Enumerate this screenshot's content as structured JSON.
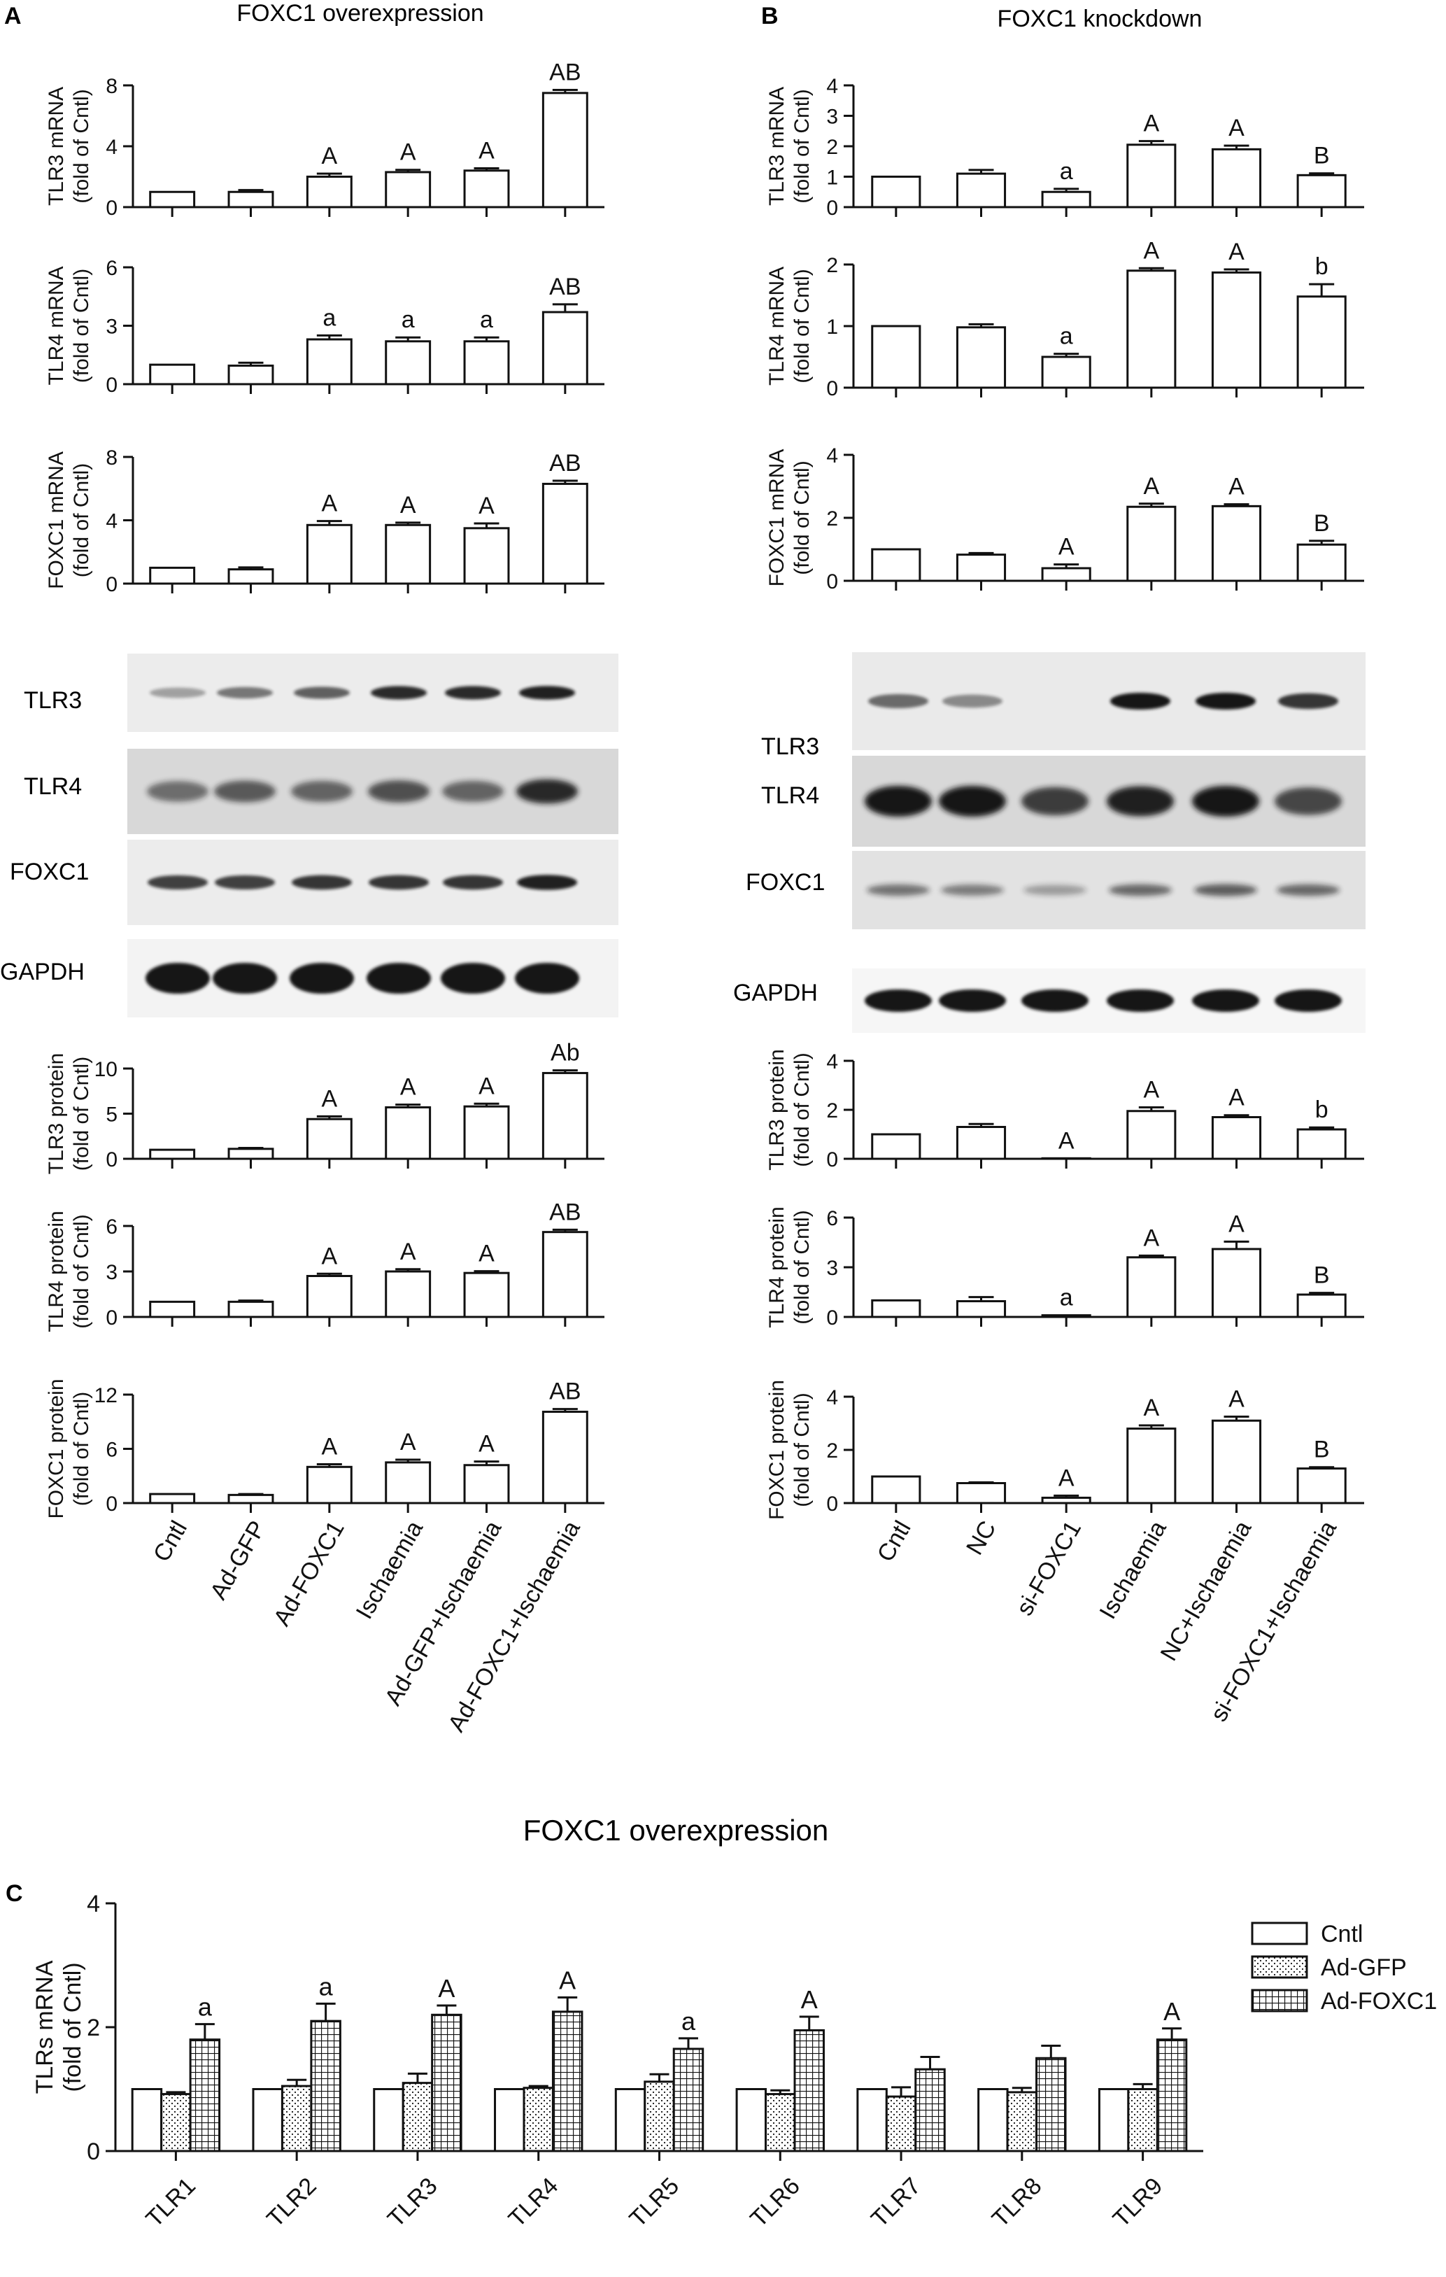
{
  "figure": {
    "panel_labels": [
      "A",
      "B",
      "C"
    ],
    "panel_titles": [
      "FOXC1 overexpression",
      "FOXC1 knockdown",
      "FOXC1 overexpression"
    ],
    "groups_A": [
      "Cntl",
      "Ad-GFP",
      "Ad-FOXC1",
      "Ischaemia",
      "Ad-GFP+Ischaemia",
      "Ad-FOXC1+Ischaemia"
    ],
    "groups_B": [
      "Cntl",
      "NC",
      "si-FOXC1",
      "Ischaemia",
      "NC+Ischaemia",
      "si-FOXC1+Ischaemia"
    ],
    "blot_labels_A": [
      "TLR3",
      "TLR4",
      "FOXC1",
      "GAPDH"
    ],
    "blot_labels_B": [
      "TLR3",
      "TLR4",
      "FOXC1",
      "GAPDH"
    ],
    "colors": {
      "ink": "#111111",
      "bar_fill": "#ffffff",
      "blot_bg": "#e6e6e6",
      "band": "#141414"
    }
  },
  "chart_data": [
    {
      "id": "A-TLR3-mRNA",
      "panel": "A",
      "type": "bar",
      "ylabel": [
        "TLR3 mRNA",
        "(fold of Cntl)"
      ],
      "yticks": [
        "0",
        "4",
        "8"
      ],
      "ylim": [
        0,
        8
      ],
      "categories": [
        "Cntl",
        "Ad-GFP",
        "Ad-FOXC1",
        "Ischaemia",
        "Ad-GFP+Ischaemia",
        "Ad-FOXC1+Ischaemia"
      ],
      "values": [
        1.0,
        1.0,
        2.0,
        2.3,
        2.4,
        7.5
      ],
      "errors": [
        0,
        0.12,
        0.2,
        0.15,
        0.15,
        0.2
      ],
      "annotations": [
        "",
        "",
        "A",
        "A",
        "A",
        "AB"
      ]
    },
    {
      "id": "A-TLR4-mRNA",
      "panel": "A",
      "type": "bar",
      "ylabel": [
        "TLR4 mRNA",
        "(fold of Cntl)"
      ],
      "yticks": [
        "0",
        "3",
        "6"
      ],
      "ylim": [
        0,
        6
      ],
      "categories": [
        "Cntl",
        "Ad-GFP",
        "Ad-FOXC1",
        "Ischaemia",
        "Ad-GFP+Ischaemia",
        "Ad-FOXC1+Ischaemia"
      ],
      "values": [
        1.0,
        0.95,
        2.3,
        2.2,
        2.2,
        3.7
      ],
      "errors": [
        0,
        0.15,
        0.2,
        0.2,
        0.2,
        0.4
      ],
      "annotations": [
        "",
        "",
        "a",
        "a",
        "a",
        "AB"
      ]
    },
    {
      "id": "A-FOXC1-mRNA",
      "panel": "A",
      "type": "bar",
      "ylabel": [
        "FOXC1 mRNA",
        "(fold of Cntl)"
      ],
      "yticks": [
        "0",
        "4",
        "8"
      ],
      "ylim": [
        0,
        8
      ],
      "categories": [
        "Cntl",
        "Ad-GFP",
        "Ad-FOXC1",
        "Ischaemia",
        "Ad-GFP+Ischaemia",
        "Ad-FOXC1+Ischaemia"
      ],
      "values": [
        1.0,
        0.9,
        3.7,
        3.7,
        3.5,
        6.3
      ],
      "errors": [
        0,
        0.12,
        0.25,
        0.15,
        0.3,
        0.2
      ],
      "annotations": [
        "",
        "",
        "A",
        "A",
        "A",
        "AB"
      ]
    },
    {
      "id": "A-TLR3-protein",
      "panel": "A",
      "type": "bar",
      "ylabel": [
        "TLR3 protein",
        "(fold of Cntl)"
      ],
      "yticks": [
        "0",
        "5",
        "10"
      ],
      "ylim": [
        0,
        10
      ],
      "categories": [
        "Cntl",
        "Ad-GFP",
        "Ad-FOXC1",
        "Ischaemia",
        "Ad-GFP+Ischaemia",
        "Ad-FOXC1+Ischaemia"
      ],
      "values": [
        1.0,
        1.1,
        4.4,
        5.7,
        5.8,
        9.5
      ],
      "errors": [
        0,
        0.1,
        0.3,
        0.3,
        0.3,
        0.3
      ],
      "annotations": [
        "",
        "",
        "A",
        "A",
        "A",
        "Ab"
      ]
    },
    {
      "id": "A-TLR4-protein",
      "panel": "A",
      "type": "bar",
      "ylabel": [
        "TLR4 protein",
        "(fold of Cntl)"
      ],
      "yticks": [
        "0",
        "3",
        "6"
      ],
      "ylim": [
        0,
        6
      ],
      "categories": [
        "Cntl",
        "Ad-GFP",
        "Ad-FOXC1",
        "Ischaemia",
        "Ad-GFP+Ischaemia",
        "Ad-FOXC1+Ischaemia"
      ],
      "values": [
        1.0,
        1.0,
        2.7,
        3.0,
        2.9,
        5.6
      ],
      "errors": [
        0,
        0.08,
        0.15,
        0.15,
        0.12,
        0.15
      ],
      "annotations": [
        "",
        "",
        "A",
        "A",
        "A",
        "AB"
      ]
    },
    {
      "id": "A-FOXC1-protein",
      "panel": "A",
      "type": "bar",
      "ylabel": [
        "FOXC1 protein",
        "(fold of Cntl)"
      ],
      "yticks": [
        "0",
        "6",
        "12"
      ],
      "ylim": [
        0,
        12
      ],
      "categories": [
        "Cntl",
        "Ad-GFP",
        "Ad-FOXC1",
        "Ischaemia",
        "Ad-GFP+Ischaemia",
        "Ad-FOXC1+Ischaemia"
      ],
      "values": [
        1.0,
        0.9,
        4.0,
        4.5,
        4.2,
        10.1
      ],
      "errors": [
        0,
        0.1,
        0.3,
        0.3,
        0.4,
        0.3
      ],
      "annotations": [
        "",
        "",
        "A",
        "A",
        "A",
        "AB"
      ]
    },
    {
      "id": "B-TLR3-mRNA",
      "panel": "B",
      "type": "bar",
      "ylabel": [
        "TLR3 mRNA",
        "(fold of Cntl)"
      ],
      "yticks": [
        "0",
        "1",
        "2",
        "3",
        "4"
      ],
      "ylim": [
        0,
        4
      ],
      "categories": [
        "Cntl",
        "NC",
        "si-FOXC1",
        "Ischaemia",
        "NC+Ischaemia",
        "si-FOXC1+Ischaemia"
      ],
      "values": [
        1.0,
        1.1,
        0.5,
        2.05,
        1.9,
        1.05
      ],
      "errors": [
        0,
        0.12,
        0.1,
        0.12,
        0.12,
        0.06
      ],
      "annotations": [
        "",
        "",
        "a",
        "A",
        "A",
        "B"
      ]
    },
    {
      "id": "B-TLR4-mRNA",
      "panel": "B",
      "type": "bar",
      "ylabel": [
        "TLR4 mRNA",
        "(fold of Cntl)"
      ],
      "yticks": [
        "0",
        "1",
        "2"
      ],
      "ylim": [
        0,
        2
      ],
      "categories": [
        "Cntl",
        "NC",
        "si-FOXC1",
        "Ischaemia",
        "NC+Ischaemia",
        "si-FOXC1+Ischaemia"
      ],
      "values": [
        1.0,
        0.98,
        0.5,
        1.9,
        1.87,
        1.48
      ],
      "errors": [
        0,
        0.05,
        0.05,
        0.04,
        0.05,
        0.2
      ],
      "annotations": [
        "",
        "",
        "a",
        "A",
        "A",
        "b"
      ]
    },
    {
      "id": "B-FOXC1-mRNA",
      "panel": "B",
      "type": "bar",
      "ylabel": [
        "FOXC1 mRNA",
        "(fold of Cntl)"
      ],
      "yticks": [
        "0",
        "2",
        "4"
      ],
      "ylim": [
        0,
        4
      ],
      "categories": [
        "Cntl",
        "NC",
        "si-FOXC1",
        "Ischaemia",
        "NC+Ischaemia",
        "si-FOXC1+Ischaemia"
      ],
      "values": [
        1.0,
        0.83,
        0.4,
        2.35,
        2.37,
        1.15
      ],
      "errors": [
        0,
        0.05,
        0.12,
        0.1,
        0.06,
        0.12
      ],
      "annotations": [
        "",
        "",
        "A",
        "A",
        "A",
        "B"
      ]
    },
    {
      "id": "B-TLR3-protein",
      "panel": "B",
      "type": "bar",
      "ylabel": [
        "TLR3 protein",
        "(fold of Cntl)"
      ],
      "yticks": [
        "0",
        "2",
        "4"
      ],
      "ylim": [
        0,
        4
      ],
      "categories": [
        "Cntl",
        "NC",
        "si-FOXC1",
        "Ischaemia",
        "NC+Ischaemia",
        "si-FOXC1+Ischaemia"
      ],
      "values": [
        1.0,
        1.3,
        0.02,
        1.95,
        1.7,
        1.2
      ],
      "errors": [
        0,
        0.12,
        0,
        0.15,
        0.08,
        0.08
      ],
      "annotations": [
        "",
        "",
        "A",
        "A",
        "A",
        "b"
      ]
    },
    {
      "id": "B-TLR4-protein",
      "panel": "B",
      "type": "bar",
      "ylabel": [
        "TLR4 protein",
        "(fold of Cntl)"
      ],
      "yticks": [
        "0",
        "3",
        "6"
      ],
      "ylim": [
        0,
        6
      ],
      "categories": [
        "Cntl",
        "NC",
        "si-FOXC1",
        "Ischaemia",
        "NC+Ischaemia",
        "si-FOXC1+Ischaemia"
      ],
      "values": [
        1.0,
        0.95,
        0.1,
        3.6,
        4.1,
        1.35
      ],
      "errors": [
        0,
        0.25,
        0,
        0.1,
        0.45,
        0.1
      ],
      "annotations": [
        "",
        "",
        "a",
        "A",
        "A",
        "B"
      ]
    },
    {
      "id": "B-FOXC1-protein",
      "panel": "B",
      "type": "bar",
      "ylabel": [
        "FOXC1 protein",
        "(fold of Cntl)"
      ],
      "yticks": [
        "0",
        "2",
        "4"
      ],
      "ylim": [
        0,
        4
      ],
      "categories": [
        "Cntl",
        "NC",
        "si-FOXC1",
        "Ischaemia",
        "NC+Ischaemia",
        "si-FOXC1+Ischaemia"
      ],
      "values": [
        1.0,
        0.75,
        0.2,
        2.8,
        3.1,
        1.3
      ],
      "errors": [
        0,
        0.03,
        0.08,
        0.12,
        0.15,
        0.05
      ],
      "annotations": [
        "",
        "",
        "A",
        "A",
        "A",
        "B"
      ]
    },
    {
      "id": "C-TLRs-mRNA",
      "panel": "C",
      "type": "bar",
      "title": "FOXC1 overexpression",
      "ylabel": [
        "TLRs mRNA",
        "(fold of Cntl)"
      ],
      "yticks": [
        "0",
        "2",
        "4"
      ],
      "ylim": [
        0,
        4
      ],
      "categories": [
        "TLR1",
        "TLR2",
        "TLR3",
        "TLR4",
        "TLR5",
        "TLR6",
        "TLR7",
        "TLR8",
        "TLR9"
      ],
      "series": [
        {
          "name": "Cntl",
          "pattern": "plain",
          "values": [
            1.0,
            1.0,
            1.0,
            1.0,
            1.0,
            1.0,
            1.0,
            1.0,
            1.0
          ],
          "errors": [
            0,
            0,
            0,
            0,
            0,
            0,
            0,
            0,
            0
          ]
        },
        {
          "name": "Ad-GFP",
          "pattern": "dotted",
          "values": [
            0.92,
            1.05,
            1.1,
            1.02,
            1.12,
            0.92,
            0.88,
            0.95,
            1.0
          ],
          "errors": [
            0.03,
            0.1,
            0.15,
            0.03,
            0.12,
            0.06,
            0.15,
            0.07,
            0.08
          ]
        },
        {
          "name": "Ad-FOXC1",
          "pattern": "grid",
          "values": [
            1.8,
            2.1,
            2.2,
            2.25,
            1.65,
            1.95,
            1.32,
            1.5,
            1.8
          ],
          "errors": [
            0.25,
            0.28,
            0.15,
            0.23,
            0.17,
            0.22,
            0.2,
            0.2,
            0.18
          ]
        }
      ],
      "annotations": [
        "a",
        "a",
        "A",
        "A",
        "a",
        "A",
        "",
        "",
        "A"
      ],
      "legend": "right"
    }
  ]
}
